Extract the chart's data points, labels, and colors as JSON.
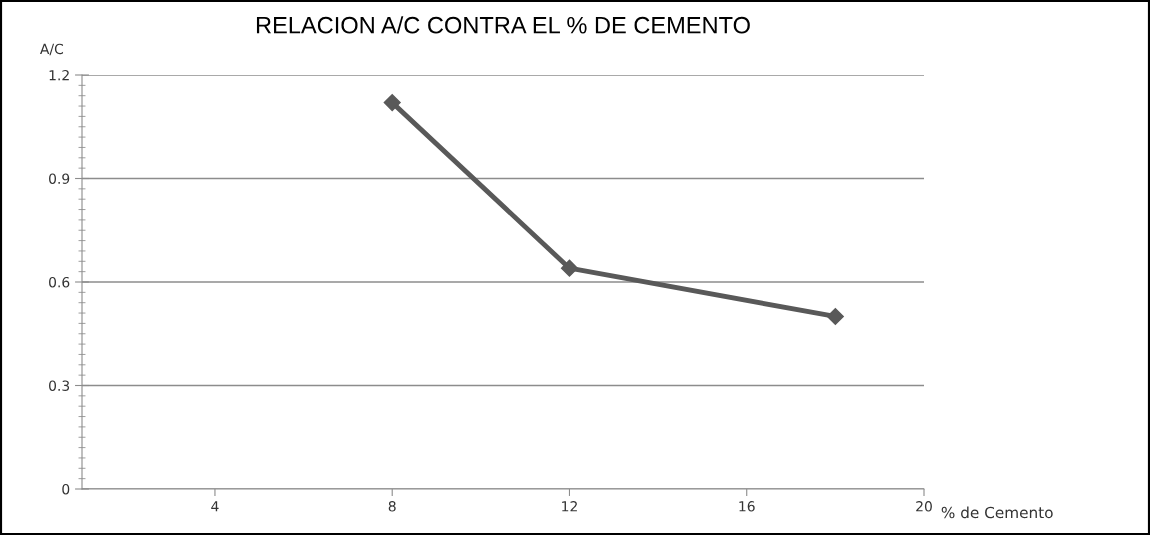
{
  "chart_data": {
    "type": "line",
    "title": "RELACION A/C CONTRA EL % DE CEMENTO",
    "xlabel": "% de Cemento",
    "ylabel": "A/C",
    "x": [
      8,
      12,
      18
    ],
    "series": [
      {
        "color": "#595959",
        "values": [
          1.12,
          0.64,
          0.5
        ]
      }
    ],
    "xlim": [
      1,
      20
    ],
    "xticks": [
      4,
      8,
      12,
      16,
      20
    ],
    "ylim": [
      0,
      1.2
    ],
    "yticks": [
      0,
      0.3,
      0.6,
      0.9,
      1.2
    ],
    "grid": "y",
    "marker": "diamond",
    "line_style": "solid",
    "legend": false
  }
}
